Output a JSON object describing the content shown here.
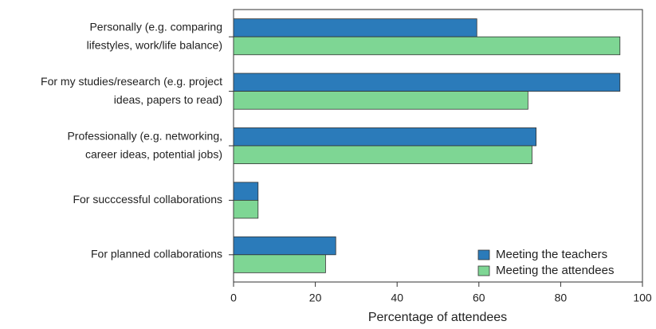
{
  "chart_data": {
    "type": "bar",
    "orientation": "horizontal",
    "xlabel": "Percentage of attendees",
    "categories": [
      "Personally (e.g. comparing\nlifestyles, work/life balance)",
      "For my studies/research (e.g. project\nideas, papers to read)",
      "Professionally (e.g. networking,\ncareer ideas, potential jobs)",
      "For succcessful collaborations",
      "For planned collaborations"
    ],
    "series": [
      {
        "name": "Meeting the teachers",
        "color": "#2b7bba",
        "values": [
          59.5,
          94.5,
          74,
          6,
          25
        ]
      },
      {
        "name": "Meeting the attendees",
        "color": "#7ed694",
        "values": [
          94.5,
          72,
          73,
          6,
          22.5
        ]
      }
    ],
    "xlim": [
      0,
      100
    ],
    "xticks": [
      0,
      20,
      40,
      60,
      80,
      100
    ],
    "grid": false,
    "legend": "lower right"
  }
}
